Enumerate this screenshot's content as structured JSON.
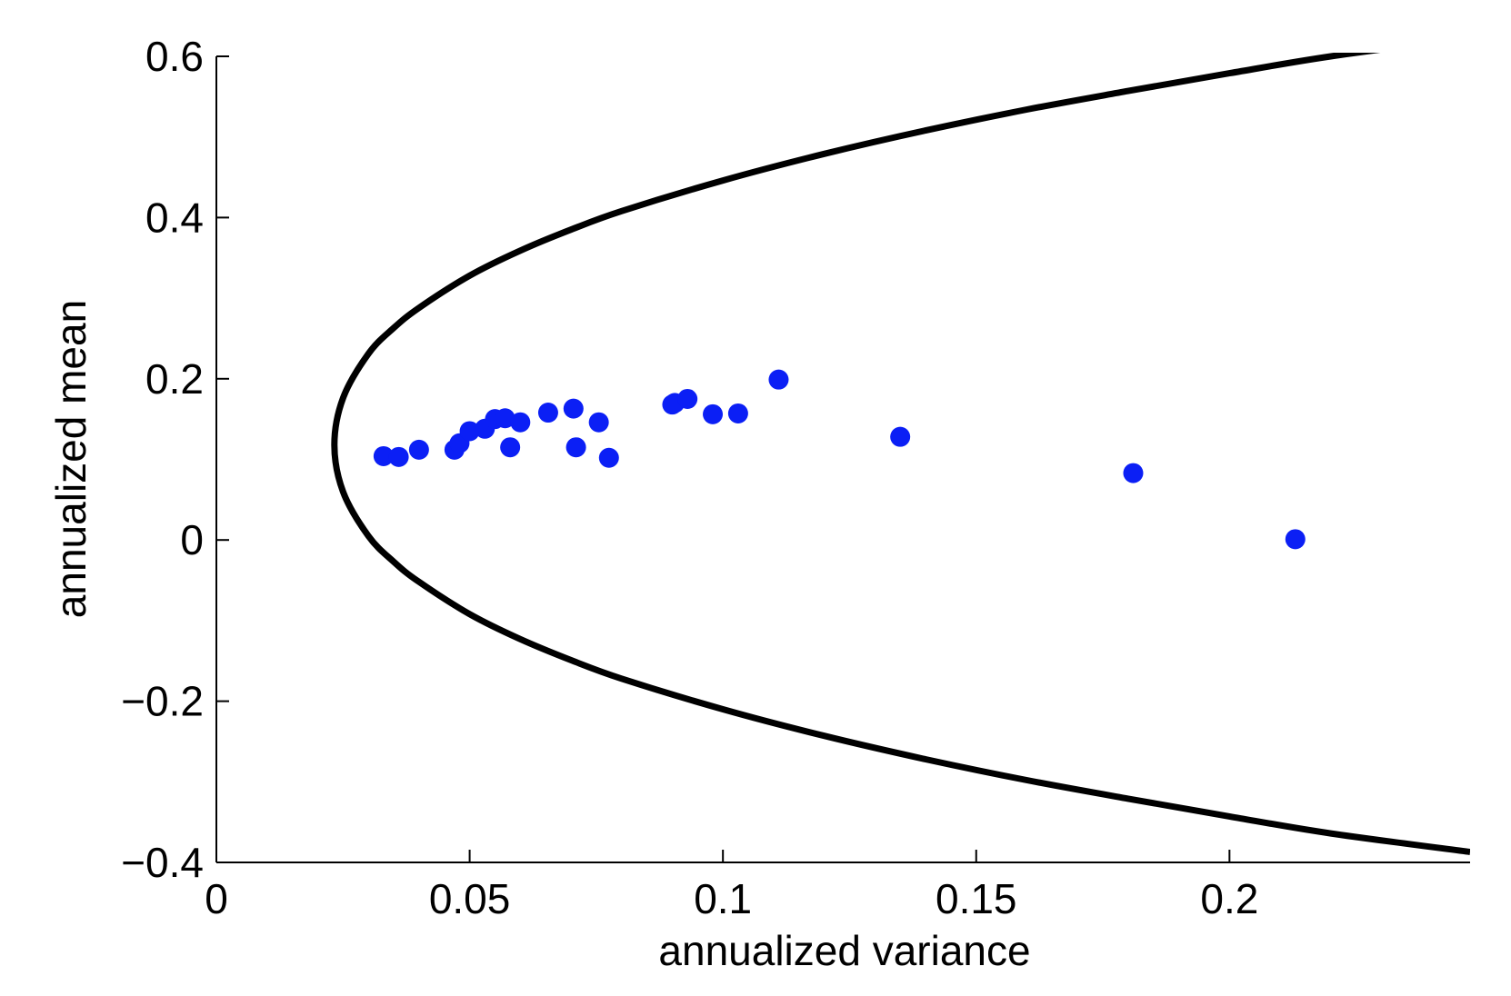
{
  "chart_data": {
    "type": "scatter",
    "title": "",
    "xlabel": "annualized variance",
    "ylabel": "annualized mean",
    "xlim": [
      0,
      0.2475
    ],
    "ylim": [
      -0.4,
      0.6
    ],
    "xticks": [
      0,
      0.05,
      0.1,
      0.15,
      0.2
    ],
    "xtick_labels": [
      "0",
      "0.05",
      "0.1",
      "0.15",
      "0.2"
    ],
    "yticks": [
      -0.4,
      -0.2,
      0,
      0.2,
      0.4,
      0.6
    ],
    "ytick_labels": [
      "−0.4",
      "−0.2",
      "0",
      "0.2",
      "0.4",
      "0.6"
    ],
    "grid": false,
    "legend": "none",
    "colors": {
      "points": "#0b1ff5",
      "frontier": "#000000"
    },
    "frontier": {
      "vertex": [
        0.0233,
        0.118
      ],
      "x": [
        0.0233,
        0.025,
        0.03,
        0.035,
        0.04,
        0.05,
        0.06,
        0.07,
        0.08,
        0.1,
        0.12,
        0.14,
        0.16,
        0.18,
        0.2,
        0.22,
        0.2475
      ],
      "y_upper": [
        0.118,
        0.176,
        0.231,
        0.263,
        0.288,
        0.328,
        0.359,
        0.385,
        0.408,
        0.446,
        0.479,
        0.508,
        0.534,
        0.557,
        0.579,
        0.6,
        0.623
      ],
      "y_lower": [
        0.118,
        0.06,
        0.005,
        -0.027,
        -0.052,
        -0.092,
        -0.123,
        -0.149,
        -0.172,
        -0.21,
        -0.243,
        -0.272,
        -0.298,
        -0.321,
        -0.343,
        -0.364,
        -0.387
      ]
    },
    "points": [
      {
        "x": 0.033,
        "y": 0.104
      },
      {
        "x": 0.036,
        "y": 0.103
      },
      {
        "x": 0.04,
        "y": 0.112
      },
      {
        "x": 0.047,
        "y": 0.112
      },
      {
        "x": 0.048,
        "y": 0.12
      },
      {
        "x": 0.05,
        "y": 0.135
      },
      {
        "x": 0.053,
        "y": 0.138
      },
      {
        "x": 0.055,
        "y": 0.15
      },
      {
        "x": 0.057,
        "y": 0.151
      },
      {
        "x": 0.058,
        "y": 0.115
      },
      {
        "x": 0.06,
        "y": 0.146
      },
      {
        "x": 0.0655,
        "y": 0.158
      },
      {
        "x": 0.0705,
        "y": 0.163
      },
      {
        "x": 0.071,
        "y": 0.115
      },
      {
        "x": 0.0755,
        "y": 0.146
      },
      {
        "x": 0.0775,
        "y": 0.102
      },
      {
        "x": 0.09,
        "y": 0.168
      },
      {
        "x": 0.0905,
        "y": 0.17
      },
      {
        "x": 0.093,
        "y": 0.175
      },
      {
        "x": 0.098,
        "y": 0.156
      },
      {
        "x": 0.103,
        "y": 0.157
      },
      {
        "x": 0.111,
        "y": 0.199
      },
      {
        "x": 0.135,
        "y": 0.128
      },
      {
        "x": 0.181,
        "y": 0.083
      },
      {
        "x": 0.213,
        "y": 0.001
      }
    ]
  }
}
